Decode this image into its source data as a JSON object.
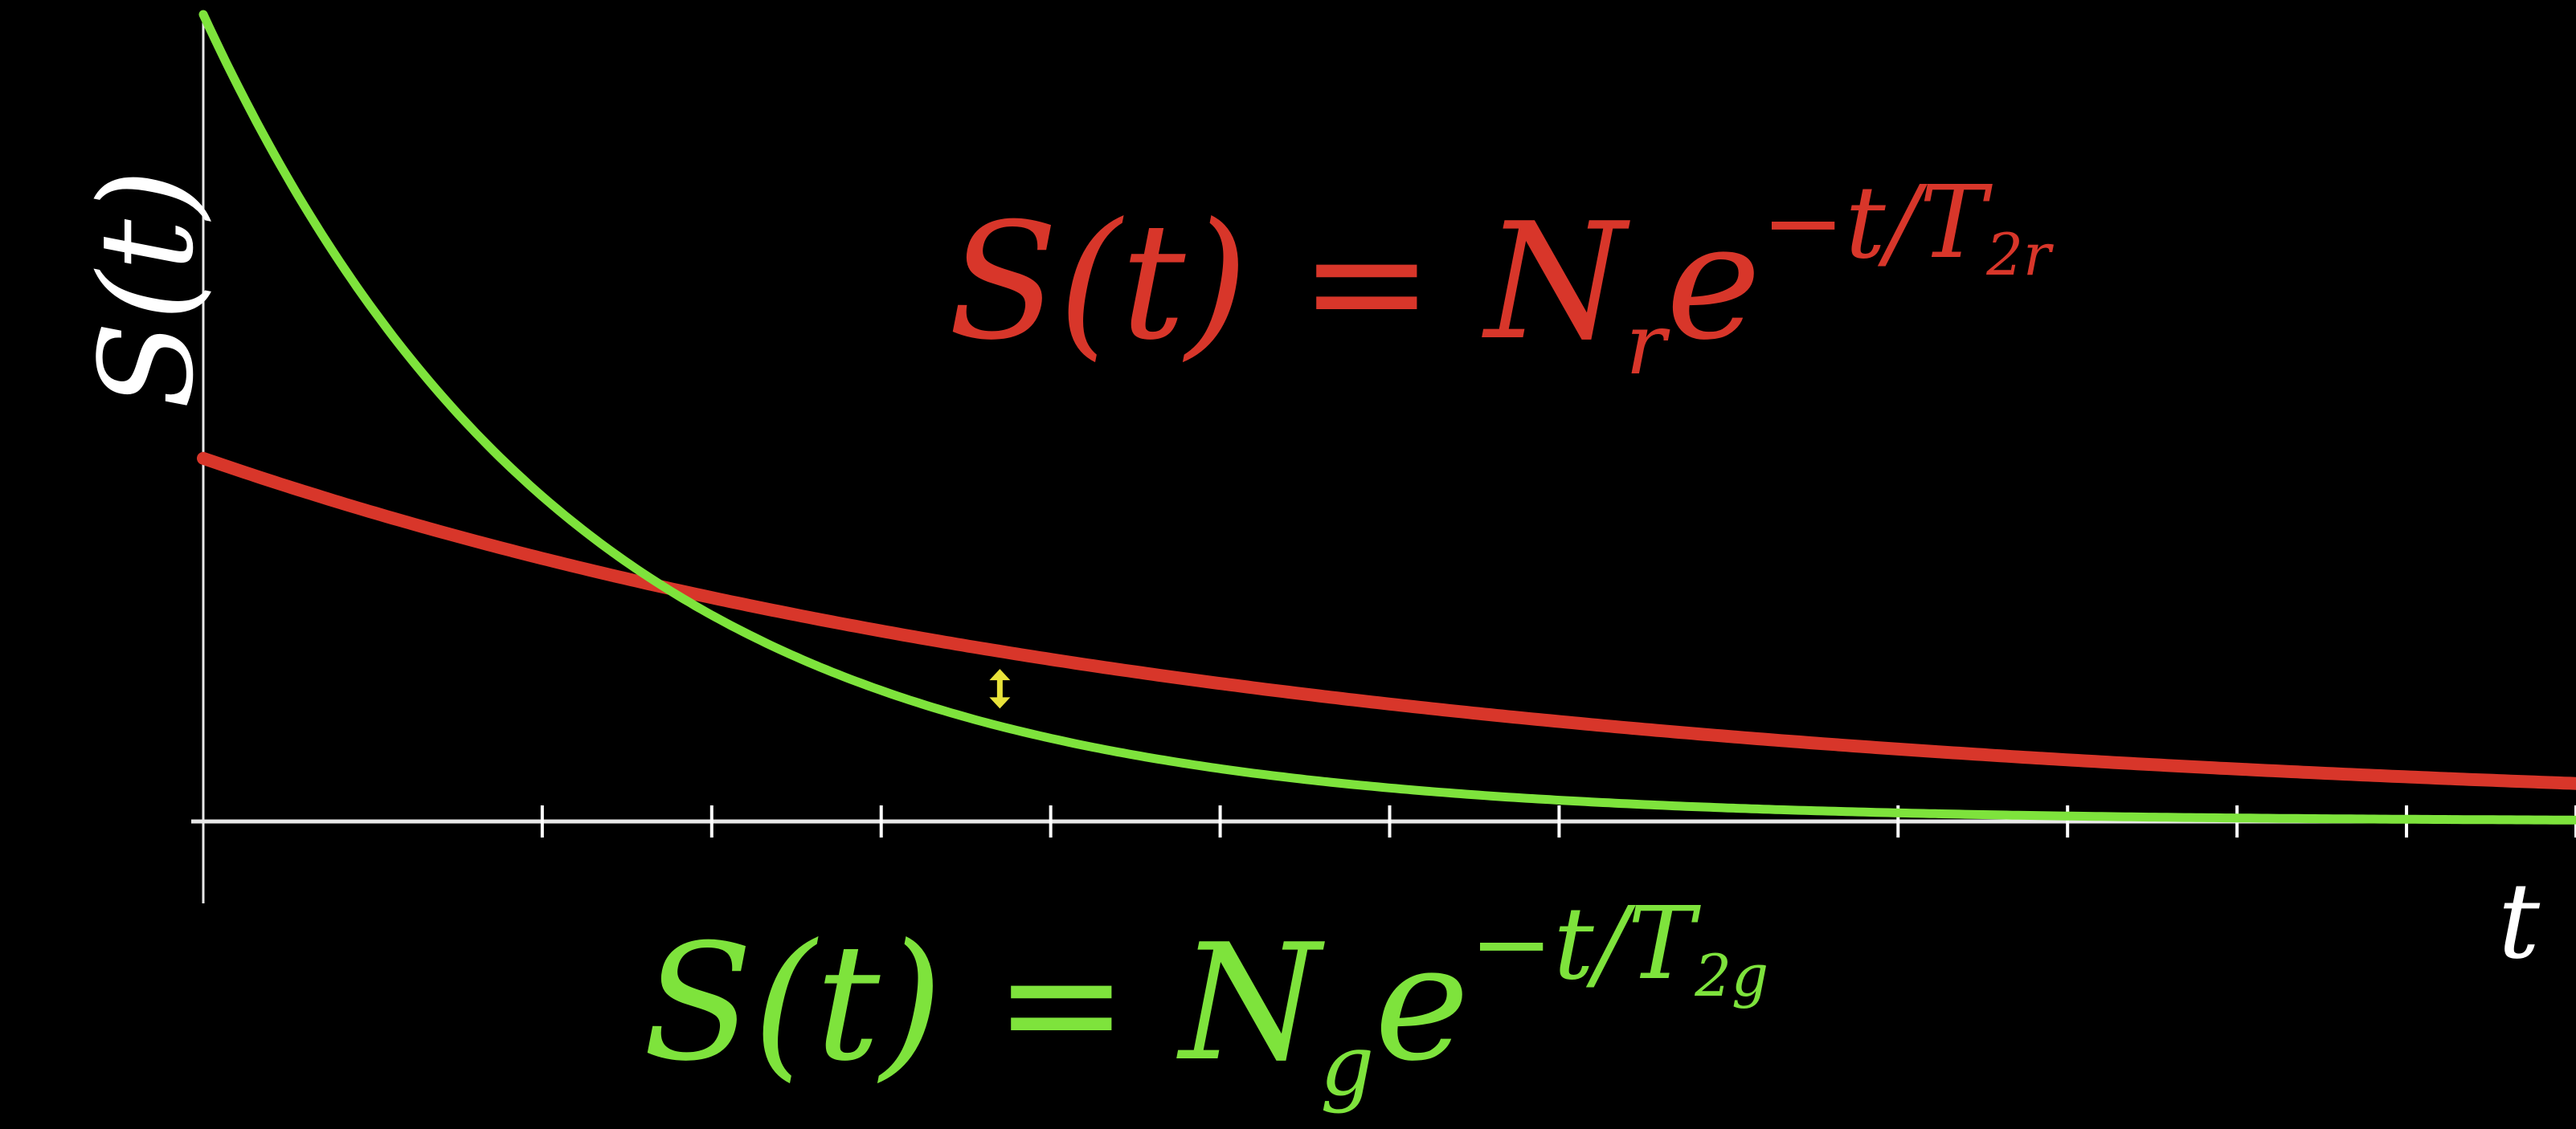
{
  "chart_data": {
    "type": "line",
    "title": "",
    "xlabel": "t",
    "ylabel": "S(t)",
    "xlim": [
      0,
      14
    ],
    "ylim": [
      0,
      1
    ],
    "x_ticks": [
      2,
      3,
      4,
      5,
      6,
      7,
      8,
      10,
      11,
      12,
      13,
      14
    ],
    "grid": false,
    "legend": "none",
    "series": [
      {
        "color": "#d8362a",
        "equation": {
          "lhs": "S(t) = N",
          "sub": "r",
          "base": "e",
          "exp": "−t/T",
          "exp_sub": "2r"
        },
        "N": 0.45,
        "T": 6.2
      },
      {
        "color": "#7ee33c",
        "equation": {
          "lhs": "S(t) = N",
          "sub": "g",
          "base": "e",
          "exp": "−t/T",
          "exp_sub": "2g"
        },
        "N": 1.0,
        "T": 2.2
      }
    ],
    "annotations": [
      {
        "type": "double-arrow",
        "x": 4.7,
        "color": "#e8e23a"
      }
    ],
    "colors": {
      "background": "#000000",
      "axis": "#ffffff"
    }
  }
}
